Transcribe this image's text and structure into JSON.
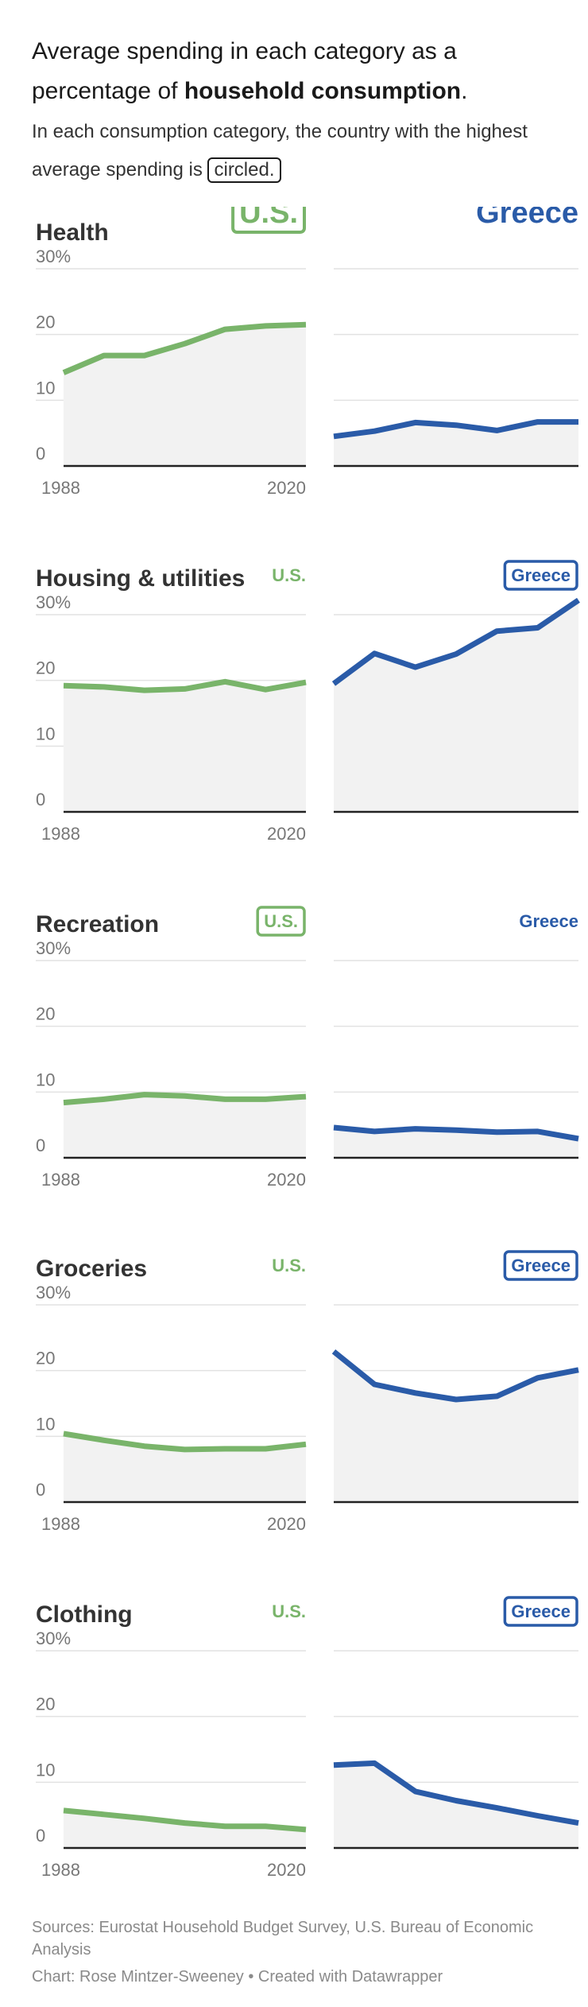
{
  "header": {
    "title_part1": "Average spending in each category as a percentage of ",
    "title_bold": "household consumption",
    "title_end": ".",
    "subtitle_part1": "In each consumption category, the country with the highest average spending is ",
    "subtitle_circled": "circled."
  },
  "colors": {
    "us": "#79b46a",
    "greece": "#2a5ba8",
    "area": "#f2f2f2",
    "grid": "#e2e2e2",
    "axis": "#222222",
    "tick_text": "#777777"
  },
  "chart_data": [
    {
      "type": "area",
      "title": "Health",
      "ylabel": "",
      "xlabel": "",
      "ylim": [
        0,
        30
      ],
      "yticks": [
        0,
        10,
        20,
        30
      ],
      "ytick_labels": [
        "0",
        "10",
        "20",
        "30%"
      ],
      "x_tick_labels": [
        "1988",
        "2020"
      ],
      "winner": "U.S.",
      "winner_style": "large",
      "series": [
        {
          "name": "U.S.",
          "values": [
            14.2,
            16.8,
            16.8,
            18.6,
            20.8,
            21.3,
            21.5
          ]
        },
        {
          "name": "Greece",
          "values": [
            4.5,
            5.3,
            6.6,
            6.2,
            5.4,
            6.7,
            6.7
          ]
        }
      ]
    },
    {
      "type": "area",
      "title": "Housing & utilities",
      "ylabel": "",
      "xlabel": "",
      "ylim": [
        0,
        30
      ],
      "yticks": [
        0,
        10,
        20,
        30
      ],
      "ytick_labels": [
        "0",
        "10",
        "20",
        "30%"
      ],
      "x_tick_labels": [
        "1988",
        "2020"
      ],
      "winner": "Greece",
      "winner_style": "small",
      "series": [
        {
          "name": "U.S.",
          "values": [
            19.2,
            19.0,
            18.5,
            18.7,
            19.8,
            18.6,
            19.7
          ]
        },
        {
          "name": "Greece",
          "values": [
            19.5,
            24.1,
            22.0,
            24.0,
            27.5,
            28.0,
            32.2
          ]
        }
      ]
    },
    {
      "type": "area",
      "title": "Recreation",
      "ylabel": "",
      "xlabel": "",
      "ylim": [
        0,
        30
      ],
      "yticks": [
        0,
        10,
        20,
        30
      ],
      "ytick_labels": [
        "0",
        "10",
        "20",
        "30%"
      ],
      "x_tick_labels": [
        "1988",
        "2020"
      ],
      "winner": "U.S.",
      "winner_style": "small",
      "series": [
        {
          "name": "U.S.",
          "values": [
            8.4,
            8.9,
            9.6,
            9.4,
            8.9,
            8.9,
            9.3
          ]
        },
        {
          "name": "Greece",
          "values": [
            4.6,
            4.0,
            4.4,
            4.2,
            3.9,
            4.0,
            2.9
          ]
        }
      ]
    },
    {
      "type": "area",
      "title": "Groceries",
      "ylabel": "",
      "xlabel": "",
      "ylim": [
        0,
        30
      ],
      "yticks": [
        0,
        10,
        20,
        30
      ],
      "ytick_labels": [
        "0",
        "10",
        "20",
        "30%"
      ],
      "x_tick_labels": [
        "1988",
        "2020"
      ],
      "winner": "Greece",
      "winner_style": "small",
      "series": [
        {
          "name": "U.S.",
          "values": [
            10.4,
            9.4,
            8.5,
            8.0,
            8.1,
            8.1,
            8.8
          ]
        },
        {
          "name": "Greece",
          "values": [
            22.9,
            17.9,
            16.6,
            15.6,
            16.1,
            18.9,
            20.1
          ]
        }
      ]
    },
    {
      "type": "area",
      "title": "Clothing",
      "ylabel": "",
      "xlabel": "",
      "ylim": [
        0,
        30
      ],
      "yticks": [
        0,
        10,
        20,
        30
      ],
      "ytick_labels": [
        "0",
        "10",
        "20",
        "30%"
      ],
      "x_tick_labels": [
        "1988",
        "2020"
      ],
      "winner": "Greece",
      "winner_style": "small",
      "series": [
        {
          "name": "U.S.",
          "values": [
            5.7,
            5.1,
            4.5,
            3.8,
            3.3,
            3.3,
            2.8
          ]
        },
        {
          "name": "Greece",
          "values": [
            12.6,
            12.9,
            8.6,
            7.2,
            6.1,
            4.9,
            3.8
          ]
        }
      ]
    }
  ],
  "footer": {
    "sources": "Sources: Eurostat Household Budget Survey, U.S. Bureau of Economic Analysis",
    "credit": "Chart: Rose Mintzer-Sweeney • Created with Datawrapper"
  }
}
